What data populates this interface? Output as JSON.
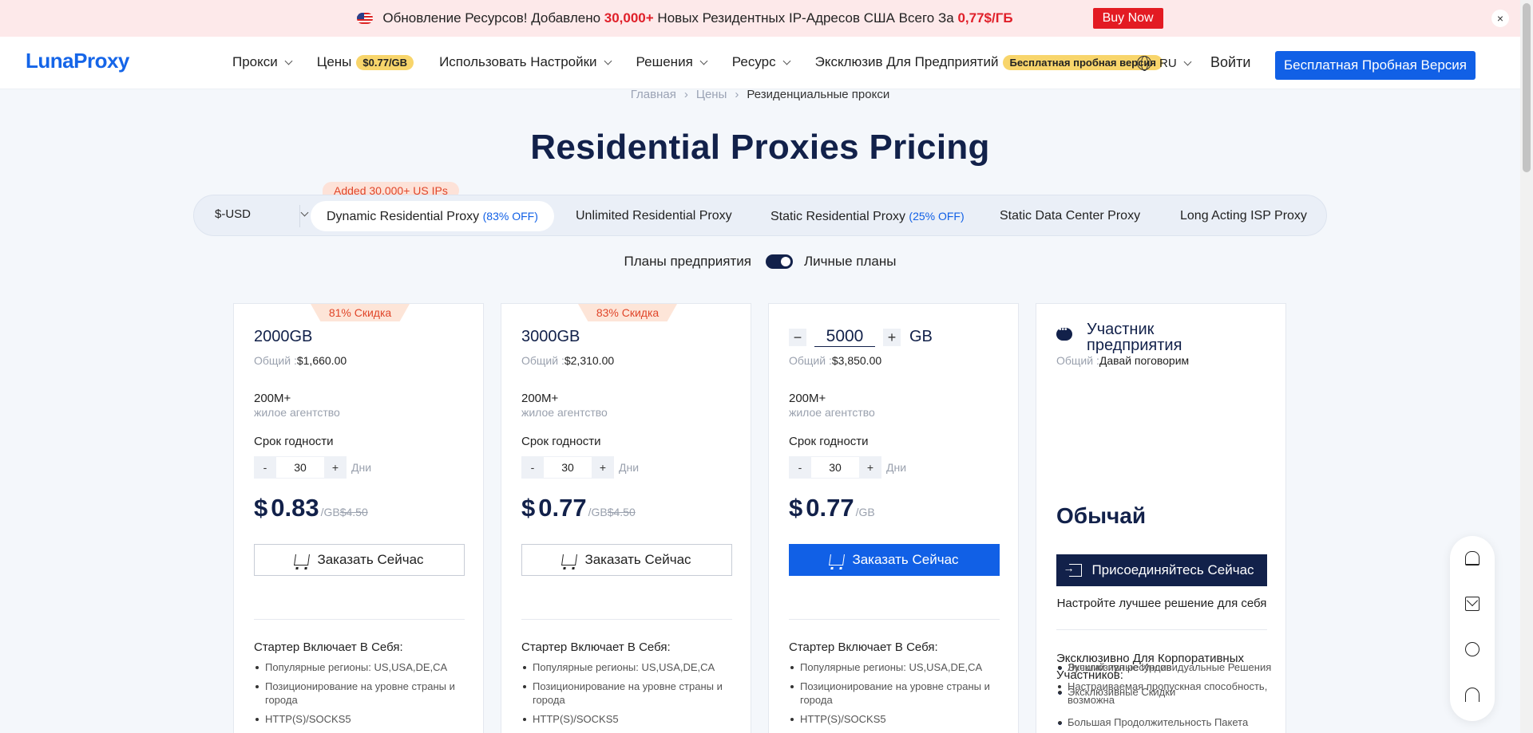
{
  "announcement": {
    "text_before": "Обновление Ресурсов! Добавлено ",
    "highlight_count": "30,000+",
    "text_middle": " Новых Резидентных IP-Адресов США Всего За ",
    "highlight_price": "0,77$/ГБ",
    "buy_label": "Buy Now",
    "close_label": "×"
  },
  "header": {
    "logo": "LunaProxy",
    "nav": [
      {
        "label": "Прокси"
      },
      {
        "label": "Цены",
        "badge": "$0.77/GB"
      },
      {
        "label": "Использовать Настройки"
      },
      {
        "label": "Решения"
      },
      {
        "label": "Ресурс"
      },
      {
        "label": "Эксклюзив Для Предприятий",
        "badge": "Бесплатная пробная версия"
      }
    ],
    "language": "RU",
    "login": "Войти",
    "trial_button": "Бесплатная Пробная Версия"
  },
  "breadcrumb": [
    "Главная",
    "Цены",
    "Резиденциальные прокси"
  ],
  "page_title": "Residential Proxies Pricing",
  "currency": "$-USD",
  "tab_badge": "Added 30,000+ US IPs",
  "tabs": [
    {
      "label": "Dynamic Residential Proxy",
      "discount": "(83% OFF)"
    },
    {
      "label": "Unlimited Residential Proxy",
      "discount": ""
    },
    {
      "label": "Static Residential Proxy",
      "discount": "(25% OFF)"
    },
    {
      "label": "Static Data Center Proxy",
      "discount": ""
    },
    {
      "label": "Long Acting ISP Proxy",
      "discount": ""
    }
  ],
  "plan_toggle": {
    "left": "Планы предприятия",
    "right": "Личные планы"
  },
  "cards": [
    {
      "ribbon": "81% Скидка",
      "size": "2000GB",
      "total_label": "Общий :",
      "total": "$1,660.00",
      "ips": "200M+",
      "ips_sub": "жилое агентство",
      "term_label": "Срок годности",
      "minus": "-",
      "days": "30",
      "plus": "+",
      "days_unit": "Дни",
      "price_symbol": "$",
      "price": "0.83",
      "per": "/GB",
      "old_price": "$4.50",
      "order": "Заказать Сейчас",
      "features_title": "Стартер Включает В Себя:",
      "features": [
        "Популярные регионы: US,USA,DE,CA",
        "Позиционирование на уровне страны и города",
        "HTTP(S)/SOCKS5"
      ]
    },
    {
      "ribbon": "83% Скидка",
      "size": "3000GB",
      "total_label": "Общий :",
      "total": "$2,310.00",
      "ips": "200M+",
      "ips_sub": "жилое агентство",
      "term_label": "Срок годности",
      "minus": "-",
      "days": "30",
      "plus": "+",
      "days_unit": "Дни",
      "price_symbol": "$",
      "price": "0.77",
      "per": "/GB",
      "old_price": "$4.50",
      "order": "Заказать Сейчас",
      "features_title": "Стартер Включает В Себя:",
      "features": [
        "Популярные регионы: US,USA,DE,CA",
        "Позиционирование на уровне страны и города",
        "HTTP(S)/SOCKS5"
      ]
    },
    {
      "gb_minus": "−",
      "gb_value": "5000",
      "gb_plus": "+",
      "gb_unit": "GB",
      "total_label": "Общий :",
      "total": "$3,850.00",
      "ips": "200M+",
      "ips_sub": "жилое агентство",
      "term_label": "Срок годности",
      "minus": "-",
      "days": "30",
      "plus": "+",
      "days_unit": "Дни",
      "price_symbol": "$",
      "price": "0.77",
      "per": "/GB",
      "order": "Заказать Сейчас",
      "features_title": "Стартер Включает В Себя:",
      "features": [
        "Популярные регионы: US,USA,DE,CA",
        "Позиционирование на уровне страны и города",
        "HTTP(S)/SOCKS5"
      ]
    }
  ],
  "enterprise": {
    "title": "Участник предприятия",
    "total_label": "Общий :",
    "total": "Давай поговорим",
    "checks": [
      "Эксклюзивные Индивидуальные Решения",
      "Эксклюзивные Скидки",
      "Большая Продолжительность Пакета"
    ],
    "big": "Обычай",
    "join": "Присоединяйтесь Сейчас",
    "note": "Настройте лучшее решение для себя",
    "features_title": "Эксклюзивно Для Корпоративных Участников:",
    "features": [
      "Лучший пул ресурсов",
      "Настраиваемая пропускная способность, возможна"
    ]
  },
  "colors": {
    "accent": "#1160e6",
    "navy": "#12214a",
    "promo": "#e31b23"
  }
}
